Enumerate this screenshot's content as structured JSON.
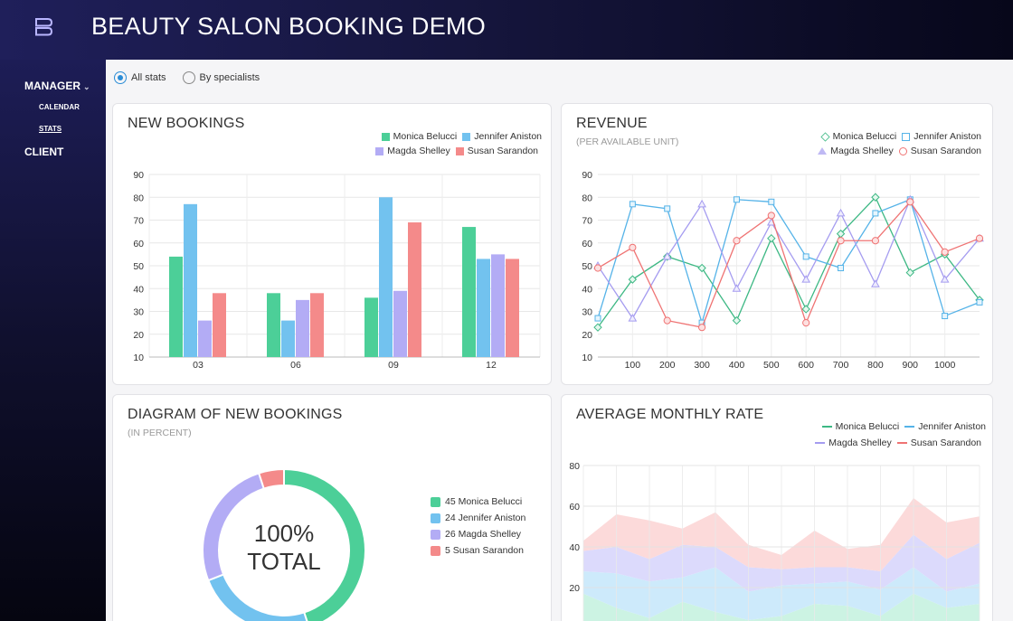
{
  "app": {
    "title": "BEAUTY SALON BOOKING DEMO",
    "logo_icon": "logo-icon"
  },
  "sidebar": {
    "manager_label": "MANAGER",
    "chevron": "⌄",
    "calendar_label": "CALENDAR",
    "stats_label": "STATS",
    "client_label": "CLIENT"
  },
  "filters": {
    "all_stats": "All stats",
    "by_specialists": "By specialists",
    "selected": "all_stats"
  },
  "colors": {
    "Monica Belucci": "#4ccf98",
    "Jennifer Aniston": "#72c2ef",
    "Magda Shelley": "#b3acf5",
    "Susan Sarandon": "#f48a8a"
  },
  "line_colors": {
    "Monica Belucci": "#3db884",
    "Jennifer Aniston": "#55b3e8",
    "Magda Shelley": "#a59cf0",
    "Susan Sarandon": "#ef7373"
  },
  "cards": {
    "new_bookings": {
      "title": "NEW BOOKINGS"
    },
    "revenue": {
      "title": "REVENUE",
      "subtitle": "(PER AVAILABLE UNIT)"
    },
    "diagram": {
      "title": "DIAGRAM OF NEW BOOKINGS",
      "subtitle": "(IN PERCENT)",
      "center_value": "100%",
      "center_label": "TOTAL"
    },
    "average": {
      "title": "AVERAGE MONTHLY RATE"
    }
  },
  "chart_data": [
    {
      "id": "new_bookings",
      "type": "bar",
      "categories": [
        "03",
        "06",
        "09",
        "12"
      ],
      "ylim": [
        10,
        90
      ],
      "yticks": [
        10,
        20,
        30,
        40,
        50,
        60,
        70,
        80,
        90
      ],
      "series": [
        {
          "name": "Monica Belucci",
          "values": [
            54,
            38,
            36,
            67
          ]
        },
        {
          "name": "Jennifer Aniston",
          "values": [
            77,
            26,
            80,
            53
          ]
        },
        {
          "name": "Magda Shelley",
          "values": [
            26,
            35,
            39,
            55
          ]
        },
        {
          "name": "Susan Sarandon",
          "values": [
            38,
            38,
            69,
            53
          ]
        }
      ],
      "grid": true,
      "legend": "top-right"
    },
    {
      "id": "revenue",
      "type": "line",
      "x": [
        0,
        100,
        200,
        300,
        400,
        500,
        600,
        700,
        800,
        900,
        1000,
        1100
      ],
      "xticks": [
        100,
        200,
        300,
        400,
        500,
        600,
        700,
        800,
        900,
        1000
      ],
      "xlim": [
        0,
        1100
      ],
      "ylim": [
        10,
        90
      ],
      "yticks": [
        10,
        20,
        30,
        40,
        50,
        60,
        70,
        80,
        90
      ],
      "series": [
        {
          "name": "Monica Belucci",
          "marker": "diamond",
          "values": [
            23,
            44,
            54,
            49,
            26,
            62,
            31,
            64,
            80,
            47,
            55,
            35
          ]
        },
        {
          "name": "Jennifer Aniston",
          "marker": "square",
          "values": [
            27,
            77,
            75,
            25,
            79,
            78,
            54,
            49,
            73,
            79,
            28,
            34
          ]
        },
        {
          "name": "Magda Shelley",
          "marker": "triangle",
          "values": [
            50,
            27,
            54,
            77,
            40,
            69,
            44,
            73,
            42,
            79,
            44,
            62
          ]
        },
        {
          "name": "Susan Sarandon",
          "marker": "circle",
          "values": [
            49,
            58,
            26,
            23,
            61,
            72,
            25,
            61,
            61,
            78,
            56,
            62
          ]
        }
      ],
      "grid": true,
      "legend": "top-right"
    },
    {
      "id": "diagram",
      "type": "pie",
      "labels": [
        "Monica Belucci",
        "Jennifer Aniston",
        "Magda Shelley",
        "Susan Sarandon"
      ],
      "values": [
        45,
        24,
        26,
        5
      ],
      "legend_text": [
        "45 Monica Belucci",
        "24 Jennifer Aniston",
        "26 Magda Shelley",
        "5 Susan Sarandon"
      ],
      "legend": "right"
    },
    {
      "id": "average",
      "type": "area",
      "x": [
        0,
        1,
        2,
        3,
        4,
        5,
        6,
        7,
        8,
        9,
        10,
        11,
        12
      ],
      "ylim": [
        0,
        80
      ],
      "yticks": [
        20,
        40,
        60,
        80
      ],
      "series": [
        {
          "name": "Monica Belucci",
          "values": [
            17,
            10,
            5,
            13,
            8,
            4,
            6,
            12,
            11,
            6,
            17,
            10,
            12
          ]
        },
        {
          "name": "Jennifer Aniston",
          "values": [
            11,
            17,
            18,
            12,
            22,
            14,
            15,
            10,
            12,
            13,
            13,
            8,
            10
          ]
        },
        {
          "name": "Magda Shelley",
          "values": [
            10,
            13,
            11,
            16,
            10,
            12,
            8,
            8,
            7,
            9,
            16,
            16,
            20
          ]
        },
        {
          "name": "Susan Sarandon",
          "values": [
            5,
            16,
            19,
            8,
            17,
            11,
            7,
            18,
            9,
            13,
            18,
            18,
            13
          ]
        }
      ],
      "grid": true,
      "legend": "top-right"
    }
  ]
}
